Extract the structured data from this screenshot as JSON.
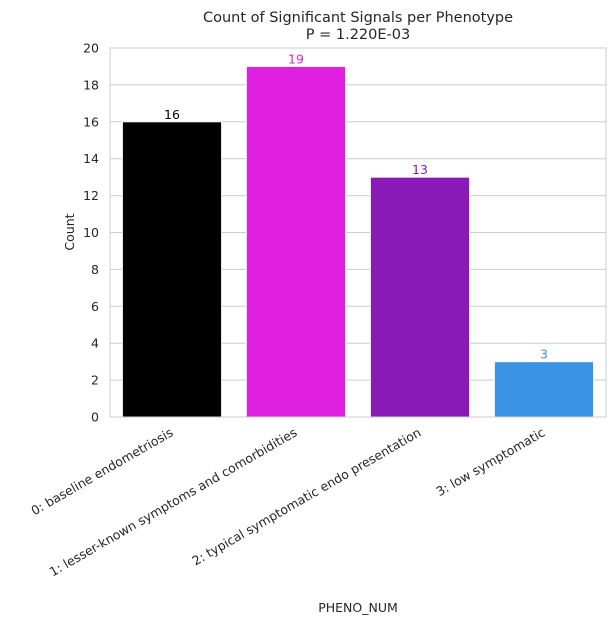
{
  "chart_data": {
    "type": "bar",
    "title": "Count of Significant Signals per Phenotype",
    "subtitle": "P = 1.220E-03",
    "xlabel": "PHENO_NUM",
    "ylabel": "Count",
    "ylim": [
      0,
      20
    ],
    "yticks": [
      0,
      2,
      4,
      6,
      8,
      10,
      12,
      14,
      16,
      18,
      20
    ],
    "grid": true,
    "categories": [
      "0: baseline endometriosis",
      "1: lesser-known symptoms and comorbidities",
      "2: typical symptomatic endo presentation",
      "3: low symptomatic"
    ],
    "values": [
      16,
      19,
      13,
      3
    ],
    "colors": [
      "#000000",
      "#e020e0",
      "#8a1ab8",
      "#3a92e6"
    ]
  }
}
